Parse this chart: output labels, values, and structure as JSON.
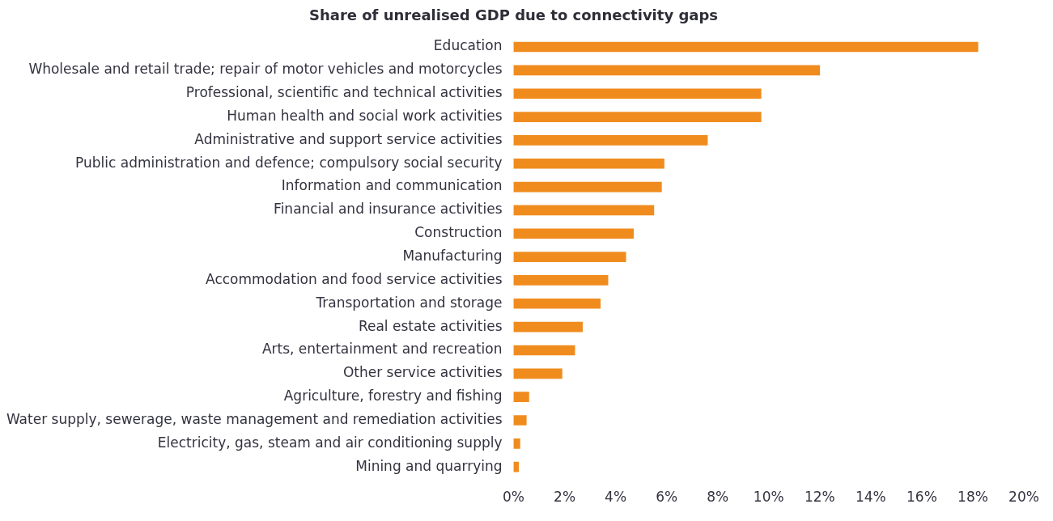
{
  "chart_data": {
    "type": "bar",
    "orientation": "horizontal",
    "title": "Share of unrealised GDP due to connectivity gaps",
    "categories": [
      "Education",
      "Wholesale and retail trade; repair of motor vehicles and motorcycles",
      "Professional, scientific and technical activities",
      "Human health and social work activities",
      "Administrative and support service activities",
      "Public administration and defence; compulsory social security",
      "Information and communication",
      "Financial and insurance activities",
      "Construction",
      "Manufacturing",
      "Accommodation and food service activities",
      "Transportation and storage",
      "Real estate activities",
      "Arts, entertainment and recreation",
      "Other service activities",
      "Agriculture, forestry and fishing",
      "Water supply, sewerage, waste management and remediation activities",
      "Electricity, gas, steam and air conditioning supply",
      "Mining and quarrying"
    ],
    "values": [
      18.2,
      12.0,
      9.7,
      9.7,
      7.6,
      5.9,
      5.8,
      5.5,
      4.7,
      4.4,
      3.7,
      3.4,
      2.7,
      2.4,
      1.9,
      0.6,
      0.5,
      0.25,
      0.2
    ],
    "color": "#f08c1e",
    "xlim": [
      0,
      20
    ],
    "xticks": [
      {
        "value": 0,
        "label": "0%"
      },
      {
        "value": 2,
        "label": "2%"
      },
      {
        "value": 4,
        "label": "4%"
      },
      {
        "value": 6,
        "label": "6%"
      },
      {
        "value": 8,
        "label": "8%"
      },
      {
        "value": 10,
        "label": "10%"
      },
      {
        "value": 12,
        "label": "12%"
      },
      {
        "value": 14,
        "label": "14%"
      },
      {
        "value": 16,
        "label": "16%"
      },
      {
        "value": 18,
        "label": "18%"
      },
      {
        "value": 20,
        "label": "20%"
      }
    ],
    "grid": false,
    "legend": false
  }
}
